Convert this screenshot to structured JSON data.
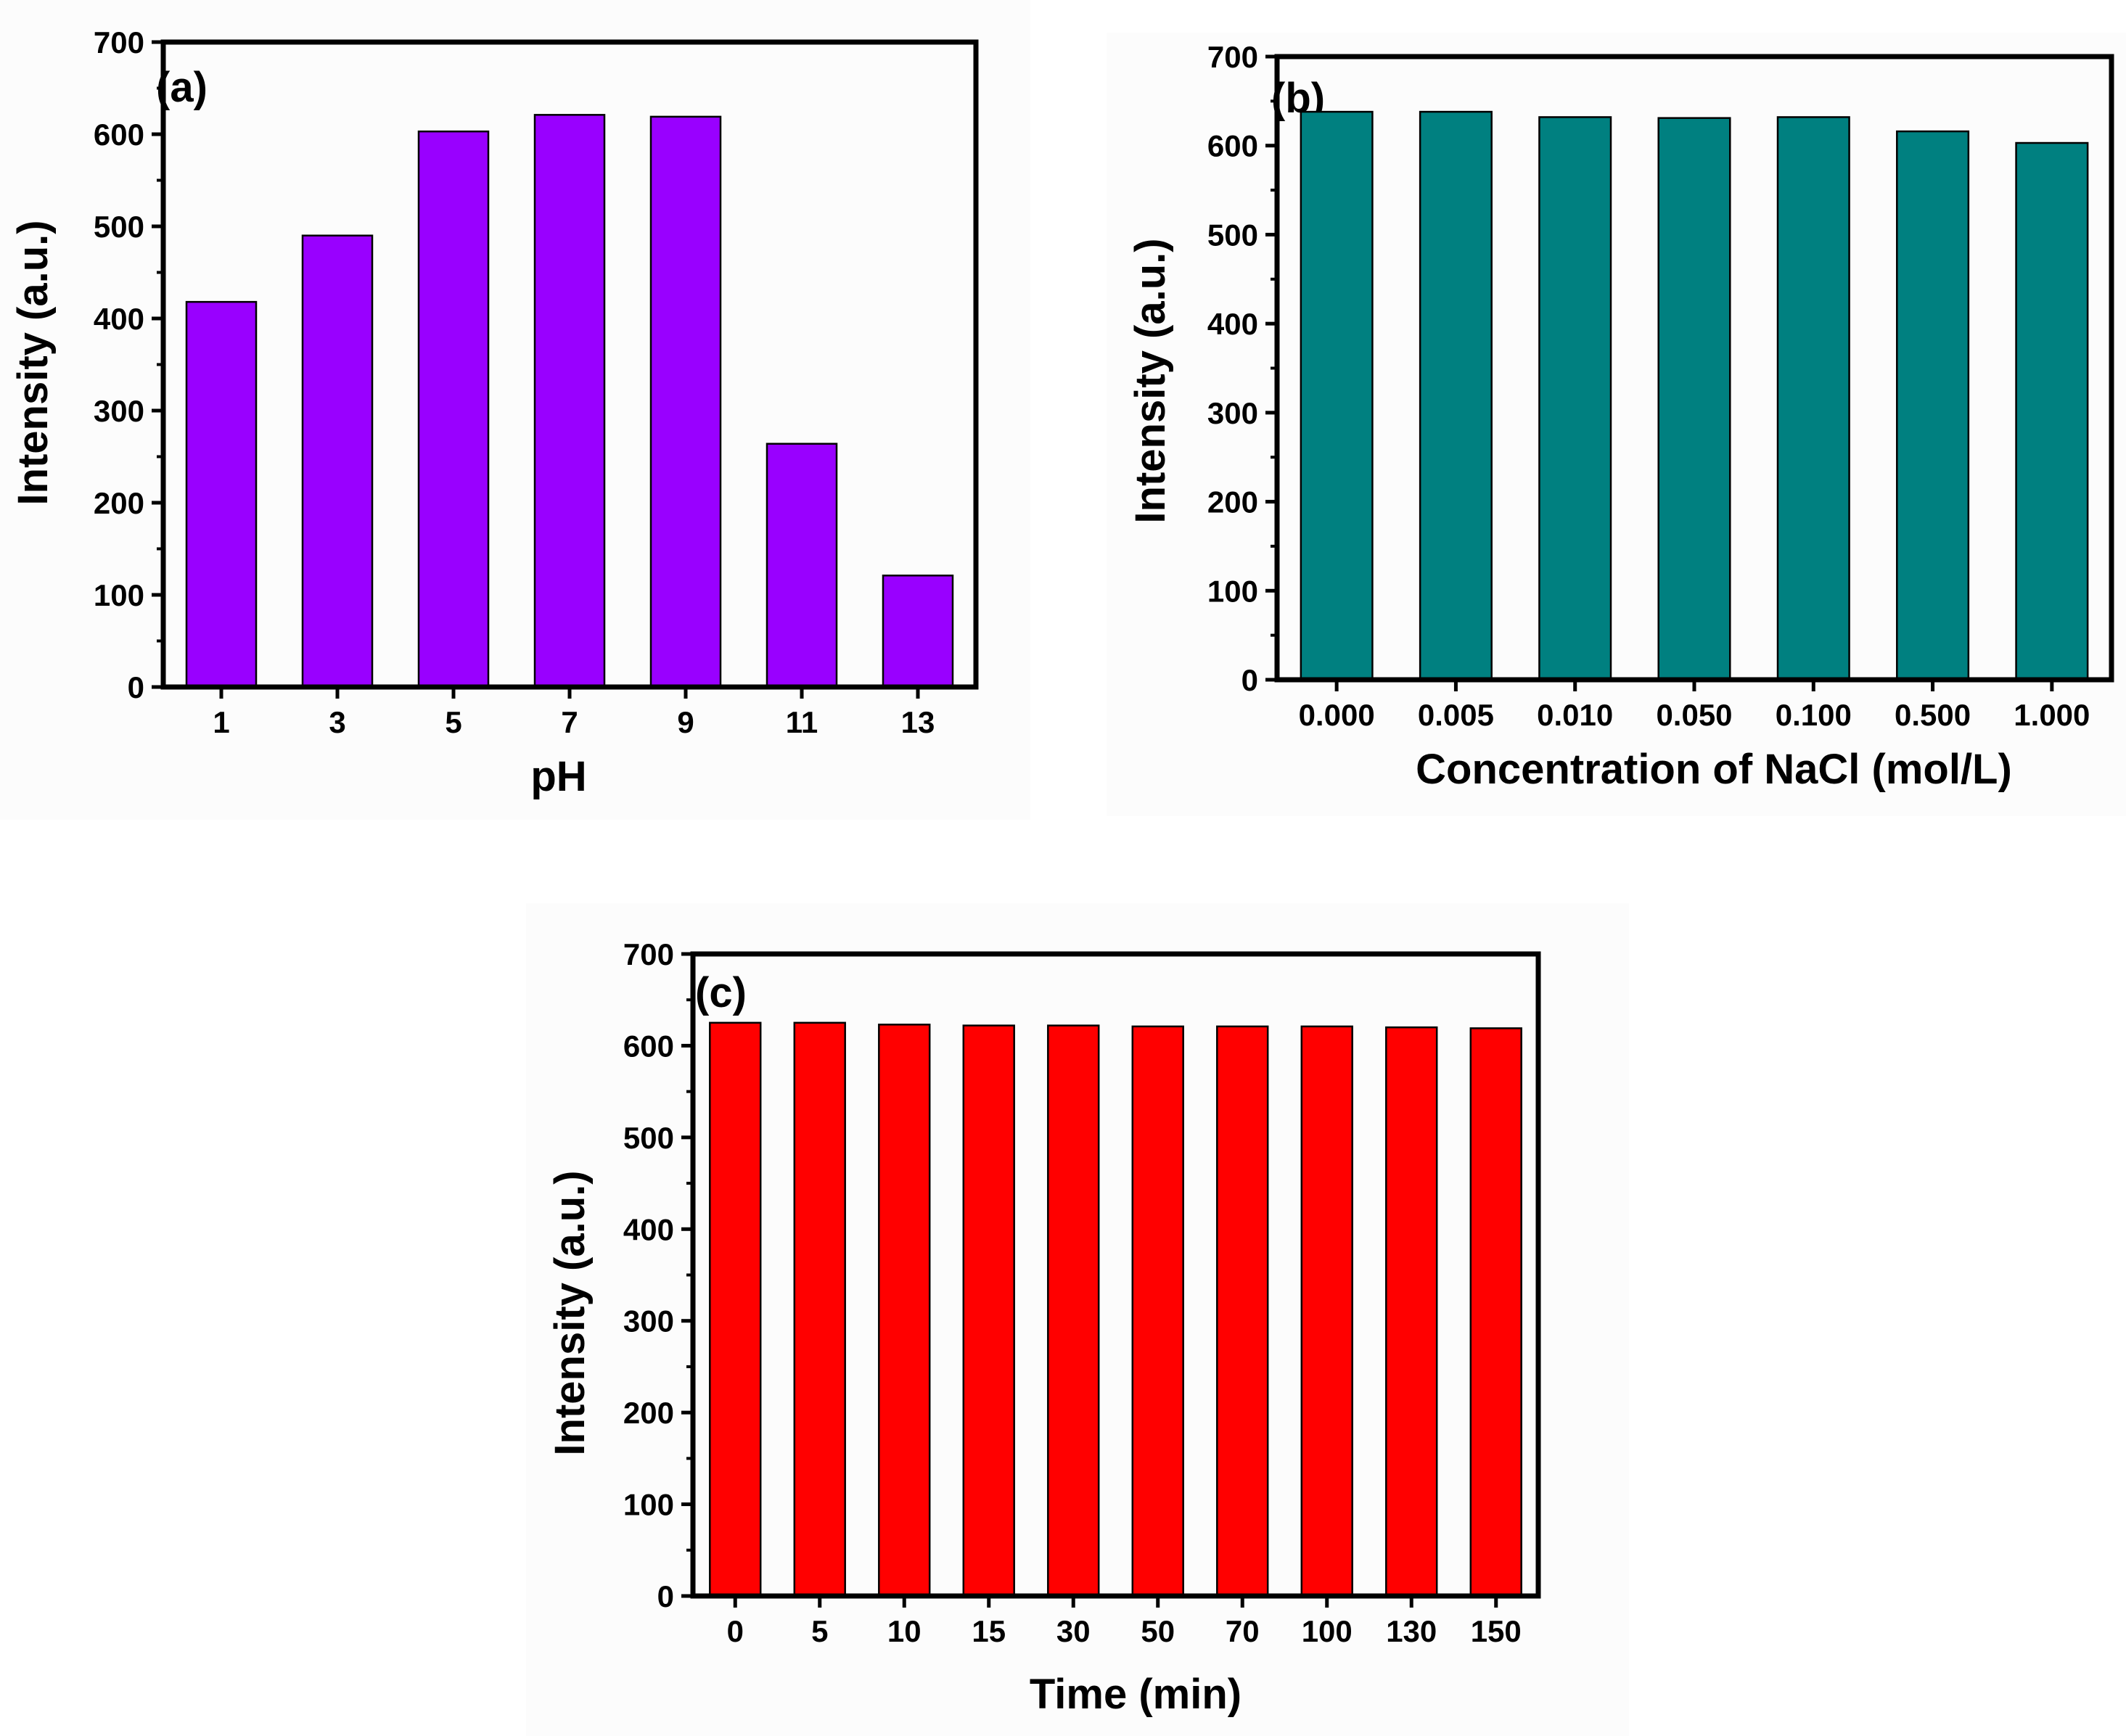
{
  "chart_data": [
    {
      "type": "bar",
      "panel_label": "(a)",
      "color": "#9900ff",
      "xlabel": "pH",
      "ylabel": "Intensity (a.u.)",
      "ylim": [
        0,
        700
      ],
      "yticks": [
        0,
        100,
        200,
        300,
        400,
        500,
        600,
        700
      ],
      "categories": [
        "1",
        "3",
        "5",
        "7",
        "9",
        "11",
        "13"
      ],
      "values": [
        418,
        490,
        603,
        621,
        619,
        264,
        121
      ]
    },
    {
      "type": "bar",
      "panel_label": "(b)",
      "color": "#008080",
      "xlabel": "Concentration of NaCl (mol/L)",
      "ylabel": "Intensity (a.u.)",
      "ylim": [
        0,
        700
      ],
      "yticks": [
        0,
        100,
        200,
        300,
        400,
        500,
        600,
        700
      ],
      "categories": [
        "0.000",
        "0.005",
        "0.010",
        "0.050",
        "0.100",
        "0.500",
        "1.000"
      ],
      "values": [
        638,
        638,
        632,
        631,
        632,
        616,
        603
      ]
    },
    {
      "type": "bar",
      "panel_label": "(c)",
      "color": "#ff0000",
      "xlabel": "Time (min)",
      "ylabel": "Intensity (a.u.)",
      "ylim": [
        0,
        700
      ],
      "yticks": [
        0,
        100,
        200,
        300,
        400,
        500,
        600,
        700
      ],
      "categories": [
        "0",
        "5",
        "10",
        "15",
        "30",
        "50",
        "70",
        "100",
        "130",
        "150"
      ],
      "values": [
        625,
        625,
        623,
        622,
        622,
        621,
        621,
        621,
        620,
        619
      ]
    }
  ]
}
